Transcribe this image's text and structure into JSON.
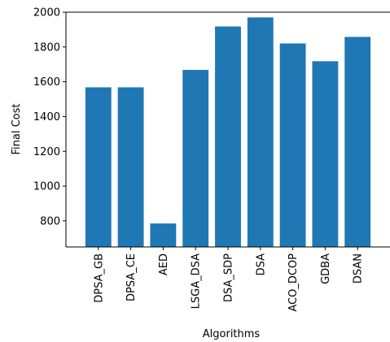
{
  "chart_data": {
    "type": "bar",
    "title": "",
    "xlabel": "Algorithms",
    "ylabel": "Final Cost",
    "categories": [
      "DPSA_GB",
      "DPSA_CE",
      "AED",
      "LSGA_DSA",
      "DSA_SDP",
      "DSA",
      "ACO_DCOP",
      "GDBA",
      "DSAN"
    ],
    "values": [
      1568,
      1568,
      785,
      1668,
      1918,
      1970,
      1820,
      1718,
      1858
    ],
    "ylim": [
      650,
      2000
    ],
    "yticks": [
      800,
      1000,
      1200,
      1400,
      1600,
      1800,
      2000
    ],
    "bar_color": "#1f77b4",
    "grid": false,
    "legend": "none"
  }
}
